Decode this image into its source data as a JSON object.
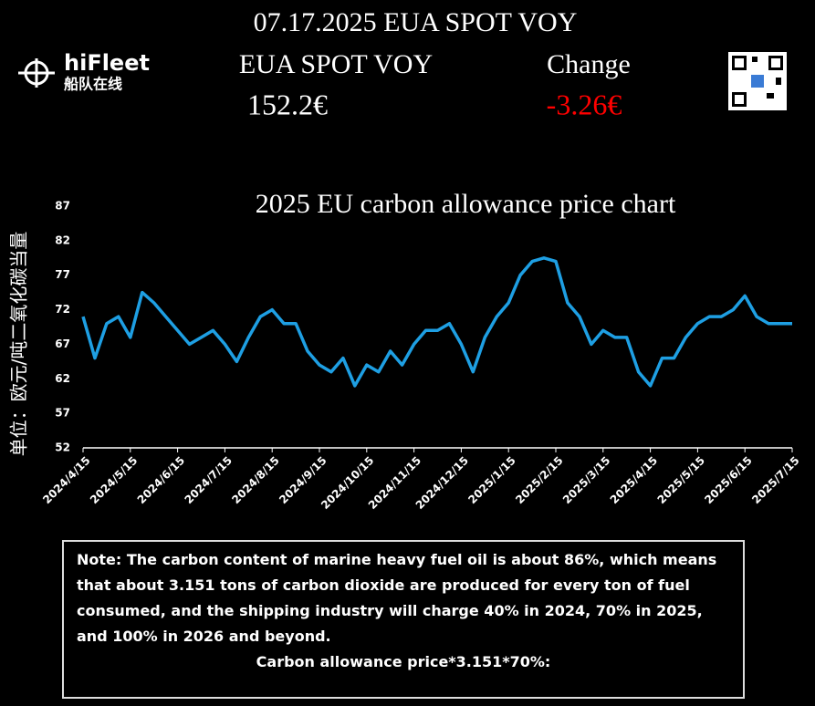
{
  "header": {
    "title": "07.17.2025 EUA SPOT VOY",
    "brand": "hiFleet",
    "brand_cn": "船队在线",
    "price_label": "EUA SPOT VOY",
    "price": "152.2€",
    "change_label": "Change",
    "change": "-3.26€"
  },
  "chart_data": {
    "type": "line",
    "title": "2025 EU carbon allowance price chart",
    "y_label": "单位：欧元/吨二氧化碳当量",
    "categories": [
      "2024/4/15",
      null,
      null,
      null,
      "2024/5/15",
      null,
      null,
      null,
      "2024/6/15",
      null,
      null,
      null,
      "2024/7/15",
      null,
      null,
      null,
      "2024/8/15",
      null,
      null,
      null,
      "2024/9/15",
      null,
      null,
      null,
      "2024/10/15",
      null,
      null,
      null,
      "2024/11/15",
      null,
      null,
      null,
      "2024/12/15",
      null,
      null,
      null,
      "2025/1/15",
      null,
      null,
      null,
      "2025/2/15",
      null,
      null,
      null,
      "2025/3/15",
      null,
      null,
      null,
      "2025/4/15",
      null,
      null,
      null,
      "2025/5/15",
      null,
      null,
      null,
      "2025/6/15",
      null,
      null,
      null,
      "2025/7/15"
    ],
    "values": [
      71,
      65,
      70,
      71,
      68,
      74.5,
      73,
      71,
      69,
      67,
      68,
      69,
      67,
      64.5,
      68,
      71,
      72,
      70,
      70,
      66,
      64,
      63,
      65,
      61,
      64,
      63,
      66,
      64,
      67,
      69,
      69,
      70,
      67,
      63,
      68,
      71,
      73,
      77,
      79,
      79.5,
      79,
      73,
      71,
      67,
      69,
      68,
      68,
      63,
      61,
      65,
      65,
      68,
      70,
      71,
      71,
      72,
      74,
      71,
      70,
      70,
      70
    ],
    "color": "#1e9fe3",
    "ylim": [
      52,
      87
    ],
    "yticks": [
      52,
      57,
      62,
      67,
      72,
      77,
      82,
      87
    ],
    "grid": false
  },
  "note": {
    "text": "Note: The carbon content of marine heavy fuel oil is about 86%, which means that about 3.151 tons of carbon dioxide are produced for every ton of fuel consumed, and the shipping industry will charge 40% in 2024, 70% in 2025, and 100% in 2026 and beyond.",
    "formula": "Carbon allowance price*3.151*70%:"
  }
}
